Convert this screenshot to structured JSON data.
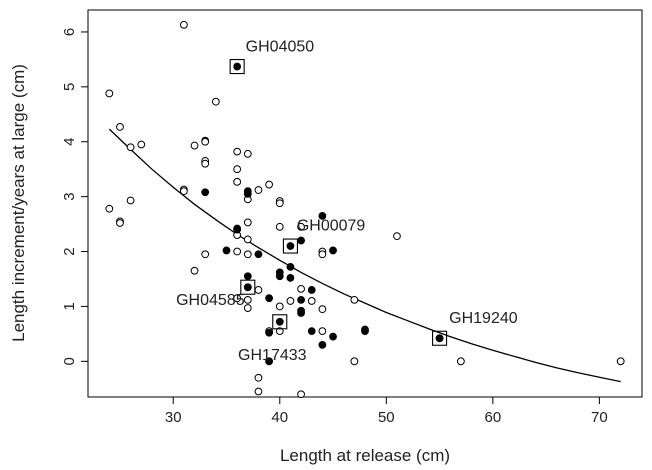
{
  "chart_data": {
    "type": "scatter",
    "title": "",
    "xlabel": "Length at release (cm)",
    "ylabel": "Length increment/years at large (cm)",
    "xlim": [
      22,
      74
    ],
    "ylim": [
      -0.65,
      6.4
    ],
    "xticks": [
      30,
      40,
      50,
      60,
      70
    ],
    "yticks": [
      0,
      1,
      2,
      3,
      4,
      5,
      6
    ],
    "grid": false,
    "legend": "none",
    "series": [
      {
        "marker": "open-circle",
        "points": [
          [
            24,
            4.88
          ],
          [
            24,
            2.78
          ],
          [
            25,
            4.27
          ],
          [
            25,
            2.55
          ],
          [
            25,
            2.52
          ],
          [
            26,
            3.9
          ],
          [
            26,
            2.93
          ],
          [
            27,
            3.95
          ],
          [
            31,
            6.13
          ],
          [
            31,
            3.13
          ],
          [
            31,
            3.1
          ],
          [
            32,
            3.93
          ],
          [
            32,
            1.65
          ],
          [
            33,
            4.02
          ],
          [
            33,
            4.0
          ],
          [
            33,
            3.65
          ],
          [
            33,
            3.6
          ],
          [
            33,
            1.95
          ],
          [
            34,
            4.73
          ],
          [
            36,
            3.82
          ],
          [
            36,
            3.5
          ],
          [
            36,
            3.27
          ],
          [
            36,
            2.3
          ],
          [
            36,
            2.0
          ],
          [
            36,
            1.15
          ],
          [
            37,
            3.78
          ],
          [
            37,
            2.95
          ],
          [
            37,
            2.53
          ],
          [
            37,
            2.22
          ],
          [
            37,
            1.95
          ],
          [
            37,
            1.12
          ],
          [
            37,
            0.97
          ],
          [
            38,
            3.12
          ],
          [
            38,
            1.3
          ],
          [
            38,
            -0.3
          ],
          [
            38,
            -0.55
          ],
          [
            39,
            3.22
          ],
          [
            39,
            0.55
          ],
          [
            40,
            2.92
          ],
          [
            40,
            2.88
          ],
          [
            40,
            2.45
          ],
          [
            40,
            1.0
          ],
          [
            40,
            0.55
          ],
          [
            41,
            1.1
          ],
          [
            42,
            2.45
          ],
          [
            42,
            1.32
          ],
          [
            42,
            -0.6
          ],
          [
            43,
            1.1
          ],
          [
            44,
            2.0
          ],
          [
            44,
            1.95
          ],
          [
            44,
            0.95
          ],
          [
            44,
            0.55
          ],
          [
            47,
            1.12
          ],
          [
            47,
            0.0
          ],
          [
            51,
            2.28
          ],
          [
            57,
            0.0
          ],
          [
            72,
            0.0
          ]
        ]
      },
      {
        "marker": "filled-circle",
        "points": [
          [
            33,
            3.08
          ],
          [
            35,
            2.02
          ],
          [
            36,
            2.42
          ],
          [
            36,
            2.4
          ],
          [
            37,
            3.1
          ],
          [
            37,
            3.05
          ],
          [
            37,
            1.55
          ],
          [
            37,
            1.35
          ],
          [
            38,
            1.95
          ],
          [
            39,
            1.15
          ],
          [
            39,
            0.52
          ],
          [
            39,
            0.0
          ],
          [
            40,
            1.62
          ],
          [
            40,
            1.55
          ],
          [
            41,
            1.72
          ],
          [
            41,
            1.52
          ],
          [
            42,
            2.2
          ],
          [
            42,
            1.12
          ],
          [
            42,
            0.92
          ],
          [
            42,
            0.88
          ],
          [
            43,
            1.3
          ],
          [
            43,
            0.55
          ],
          [
            44,
            2.65
          ],
          [
            44,
            0.3
          ],
          [
            45,
            2.02
          ],
          [
            45,
            0.45
          ],
          [
            48,
            0.58
          ],
          [
            48,
            0.55
          ],
          [
            55,
            0.42
          ]
        ]
      }
    ],
    "highlighted": [
      {
        "label": "GH04050",
        "x": 36,
        "y": 5.37,
        "label_x": 36.8,
        "label_y": 5.64,
        "anchor": "start"
      },
      {
        "label": "GH00079",
        "x": 41,
        "y": 2.1,
        "label_x": 41.6,
        "label_y": 2.38,
        "anchor": "start"
      },
      {
        "label": "GH04585",
        "x": 37,
        "y": 1.35,
        "label_x": 36.7,
        "label_y": 1.03,
        "anchor": "end"
      },
      {
        "label": "GH17433",
        "x": 40,
        "y": 0.72,
        "label_x": 39.3,
        "label_y": 0.02,
        "anchor": "middle"
      },
      {
        "label": "GH19240",
        "x": 55,
        "y": 0.42,
        "label_x": 55.9,
        "label_y": 0.7,
        "anchor": "start"
      }
    ],
    "fit_curve": [
      [
        24,
        4.23
      ],
      [
        26,
        3.86
      ],
      [
        28,
        3.5
      ],
      [
        30,
        3.17
      ],
      [
        32,
        2.86
      ],
      [
        34,
        2.58
      ],
      [
        36,
        2.31
      ],
      [
        38,
        2.07
      ],
      [
        40,
        1.84
      ],
      [
        42,
        1.62
      ],
      [
        44,
        1.42
      ],
      [
        46,
        1.23
      ],
      [
        48,
        1.06
      ],
      [
        50,
        0.89
      ],
      [
        52,
        0.74
      ],
      [
        54,
        0.59
      ],
      [
        56,
        0.45
      ],
      [
        58,
        0.32
      ],
      [
        60,
        0.2
      ],
      [
        62,
        0.09
      ],
      [
        64,
        -0.02
      ],
      [
        66,
        -0.12
      ],
      [
        68,
        -0.21
      ],
      [
        70,
        -0.29
      ],
      [
        72,
        -0.37
      ]
    ]
  }
}
